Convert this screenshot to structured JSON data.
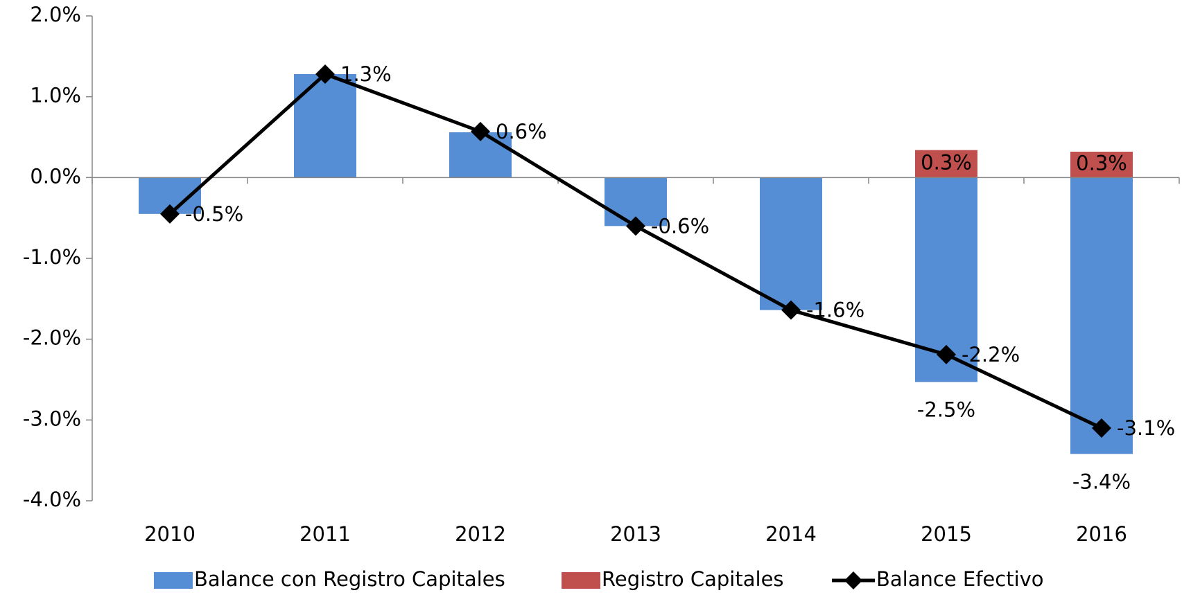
{
  "chart_data": {
    "type": "bar_line",
    "categories": [
      "2010",
      "2011",
      "2012",
      "2013",
      "2014",
      "2015",
      "2016"
    ],
    "series": [
      {
        "name": "Balance con Registro Capitales",
        "type": "bar",
        "color": "#558ed5",
        "values": [
          -0.45,
          1.28,
          0.56,
          -0.6,
          -1.64,
          -2.53,
          -3.42
        ],
        "value_labels": [
          null,
          null,
          null,
          null,
          null,
          "-2.5%",
          "-3.4%"
        ]
      },
      {
        "name": "Registro Capitales",
        "type": "bar",
        "color": "#c0504d",
        "values": [
          null,
          null,
          null,
          null,
          null,
          0.34,
          0.32
        ],
        "value_labels": [
          null,
          null,
          null,
          null,
          null,
          "0.3%",
          "0.3%"
        ]
      },
      {
        "name": "Balance Efectivo",
        "type": "line",
        "color": "#000000",
        "values": [
          -0.45,
          1.28,
          0.57,
          -0.6,
          -1.64,
          -2.19,
          -3.1
        ],
        "value_labels": [
          "-0.5%",
          "1.3%",
          "0.6%",
          "-0.6%",
          "-1.6%",
          "-2.2%",
          "-3.1%"
        ]
      }
    ],
    "ylim": [
      -4,
      2
    ],
    "yticks": [
      {
        "value": -4,
        "label": "-4.0%"
      },
      {
        "value": -3,
        "label": "-3.0%"
      },
      {
        "value": -2,
        "label": "-2.0%"
      },
      {
        "value": -1,
        "label": "-1.0%"
      },
      {
        "value": 0,
        "label": "0.0%"
      },
      {
        "value": 1,
        "label": "1.0%"
      },
      {
        "value": 2,
        "label": "2.0%"
      }
    ],
    "grid": false,
    "legend": "bottom"
  }
}
